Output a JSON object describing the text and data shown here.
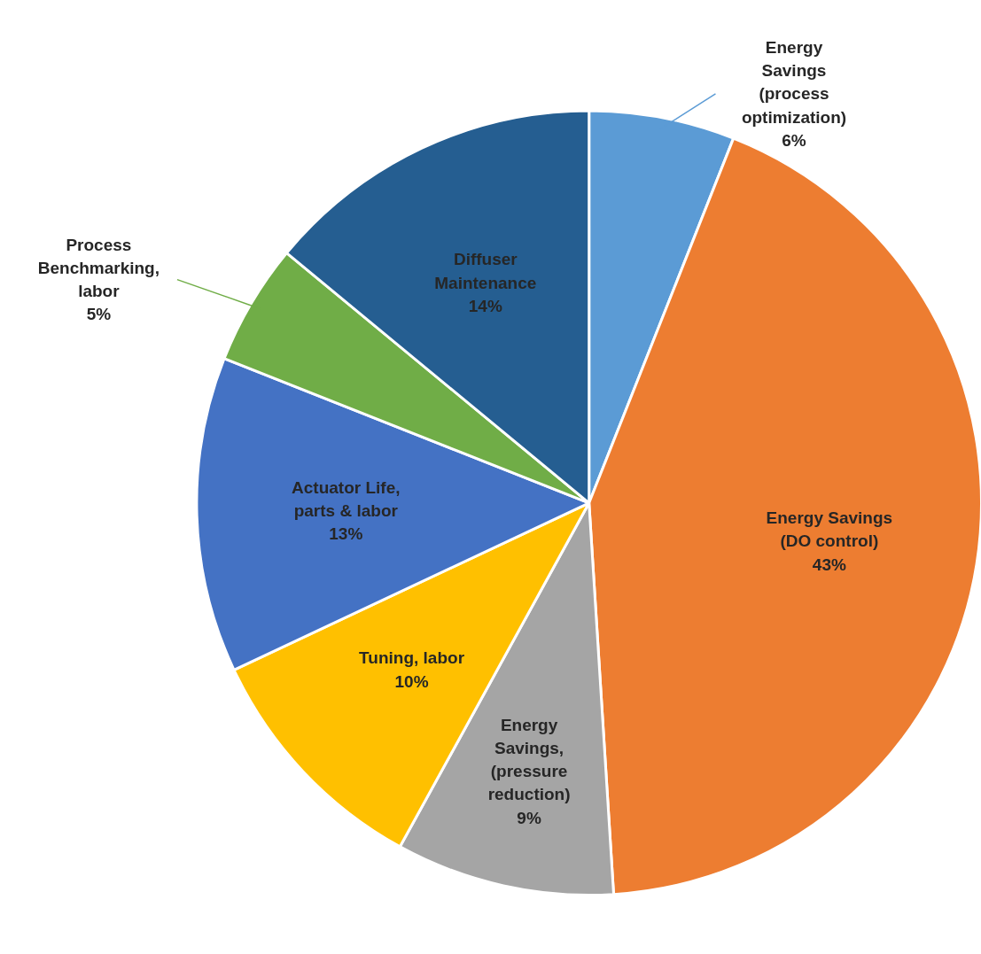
{
  "chart_data": {
    "type": "pie",
    "categories": [
      "Energy Savings (process optimization)",
      "Energy Savings (DO control)",
      "Energy Savings, (pressure reduction)",
      "Tuning, labor",
      "Actuator Life, parts & labor",
      "Process Benchmarking, labor",
      "Diffuser Maintenance"
    ],
    "values": [
      6,
      43,
      9,
      10,
      13,
      5,
      14
    ],
    "colors": [
      "#5b9bd5",
      "#ed7d31",
      "#a5a5a5",
      "#ffc000",
      "#4472c4",
      "#70ad47",
      "#255e91"
    ],
    "value_labels": [
      "6%",
      "43%",
      "9%",
      "10%",
      "13%",
      "5%",
      "14%"
    ]
  }
}
